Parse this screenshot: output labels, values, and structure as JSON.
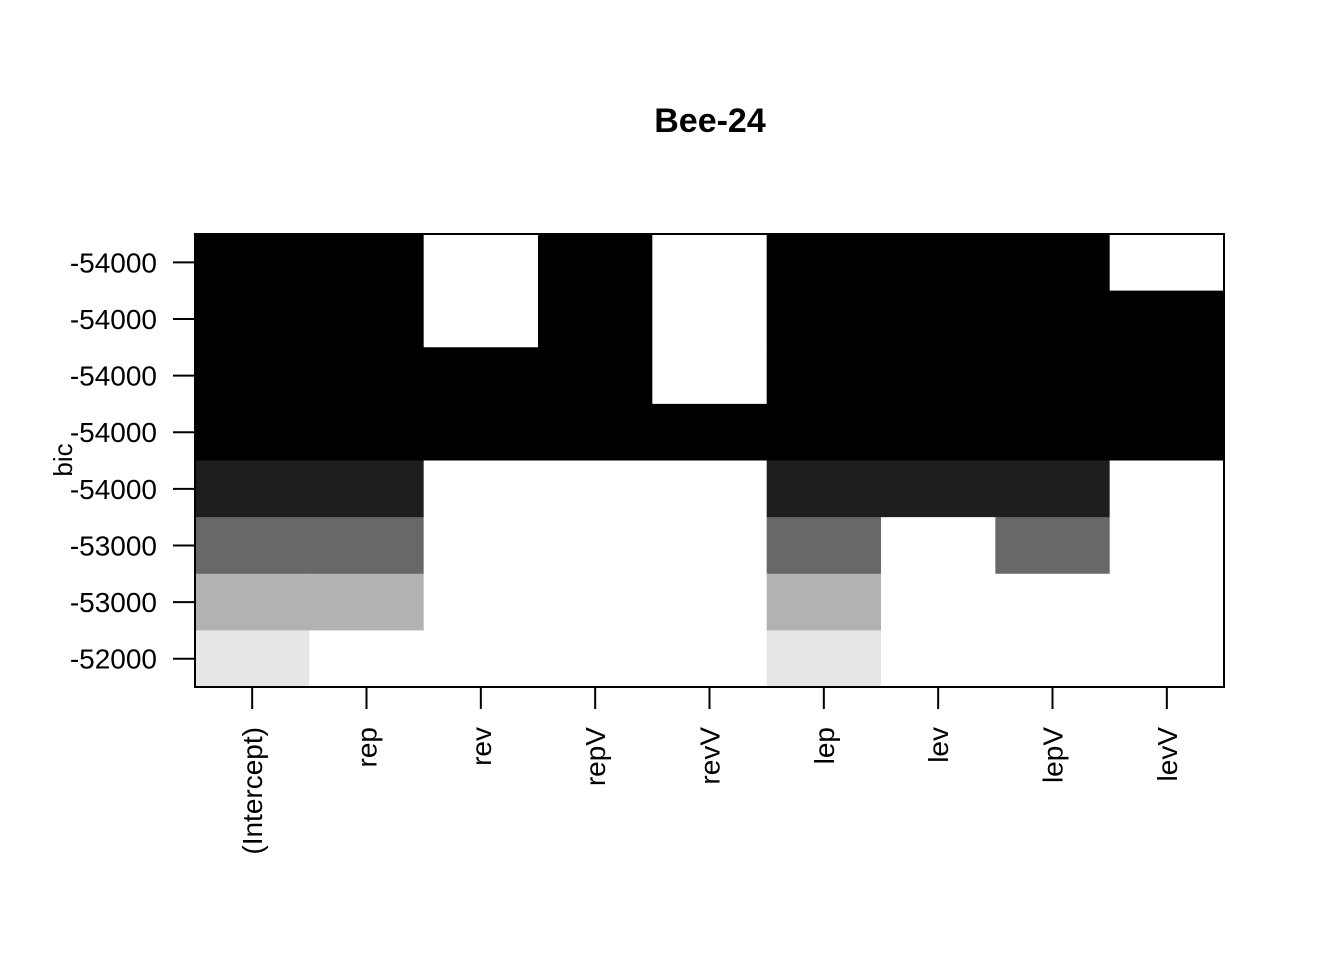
{
  "chart_data": {
    "type": "heatmap",
    "title": "Bee-24",
    "xlabel": "",
    "ylabel": "bic",
    "x_categories": [
      "(Intercept)",
      "rep",
      "rev",
      "repV",
      "revV",
      "lep",
      "lev",
      "lepV",
      "levV"
    ],
    "y_tick_labels": [
      "-54000",
      "-54000",
      "-54000",
      "-54000",
      "-54000",
      "-53000",
      "-53000",
      "-52000"
    ],
    "grid": false,
    "legend": "none",
    "shade_colors": [
      "#000000",
      "#1e1e1e",
      "#686868",
      "#b2b2b2",
      "#e6e6e6",
      "#ffffff"
    ],
    "cells": [
      [
        0,
        0,
        5,
        0,
        5,
        0,
        0,
        0,
        5
      ],
      [
        0,
        0,
        5,
        0,
        5,
        0,
        0,
        0,
        0
      ],
      [
        0,
        0,
        0,
        0,
        5,
        0,
        0,
        0,
        0
      ],
      [
        0,
        0,
        0,
        0,
        0,
        0,
        0,
        0,
        0
      ],
      [
        1,
        1,
        5,
        5,
        5,
        1,
        1,
        1,
        5
      ],
      [
        2,
        2,
        5,
        5,
        5,
        2,
        5,
        2,
        5
      ],
      [
        3,
        3,
        5,
        5,
        5,
        3,
        5,
        5,
        5
      ],
      [
        4,
        5,
        5,
        5,
        5,
        4,
        5,
        5,
        5
      ]
    ]
  }
}
